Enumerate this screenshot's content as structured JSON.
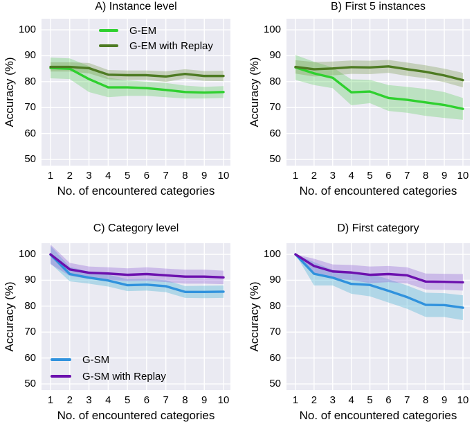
{
  "figure": {
    "background": "#ffffff",
    "axes_background": "#eaeaf2",
    "grid_color": "#ffffff"
  },
  "chart_data": [
    {
      "id": "A",
      "type": "line",
      "title": "A) Instance level",
      "xlabel": "No. of encountered categories",
      "ylabel": "Accuracy (%)",
      "x": [
        1,
        2,
        3,
        4,
        5,
        6,
        7,
        8,
        9,
        10
      ],
      "yticks": [
        50,
        60,
        70,
        80,
        90,
        100
      ],
      "ylim": [
        47.6,
        104.3
      ],
      "grid": true,
      "legend": {
        "visible": true,
        "location": "upper center"
      },
      "series": [
        {
          "name": "G-EM",
          "color": "#2fd02f",
          "band_color": "rgba(70,200,70,0.28)",
          "values": [
            85.3,
            85.0,
            81.0,
            77.8,
            77.8,
            77.5,
            76.8,
            76.0,
            75.8,
            76.0
          ],
          "upper": [
            89.3,
            89.0,
            86.0,
            81.5,
            80.5,
            80.0,
            79.5,
            78.5,
            78.0,
            78.3
          ],
          "lower": [
            81.3,
            81.0,
            76.0,
            74.0,
            74.5,
            74.5,
            74.0,
            73.5,
            73.5,
            73.7
          ]
        },
        {
          "name": "G-EM with Replay",
          "color": "#4e7b23",
          "band_color": "rgba(110,145,60,0.30)",
          "values": [
            85.7,
            85.7,
            85.2,
            82.7,
            82.5,
            82.5,
            82.0,
            83.0,
            82.2,
            82.2
          ],
          "upper": [
            87.5,
            87.5,
            87.2,
            84.5,
            84.3,
            84.3,
            84.0,
            84.8,
            84.1,
            84.2
          ],
          "lower": [
            83.9,
            83.9,
            83.2,
            80.9,
            80.7,
            80.7,
            79.9,
            81.2,
            80.3,
            80.2
          ]
        }
      ]
    },
    {
      "id": "B",
      "type": "line",
      "title": "B) First 5 instances",
      "xlabel": "No. of encountered categories",
      "ylabel": "Accuracy (%)",
      "x": [
        1,
        2,
        3,
        4,
        5,
        6,
        7,
        8,
        9,
        10
      ],
      "yticks": [
        50,
        60,
        70,
        80,
        90,
        100
      ],
      "ylim": [
        47.6,
        104.3
      ],
      "grid": true,
      "legend": {
        "visible": false,
        "location": ""
      },
      "series": [
        {
          "name": "G-EM",
          "color": "#2fd02f",
          "band_color": "rgba(70,200,70,0.28)",
          "values": [
            85.5,
            83.2,
            81.5,
            75.9,
            76.2,
            73.7,
            73.0,
            72.0,
            71.0,
            69.5
          ],
          "upper": [
            90.3,
            87.7,
            85.5,
            80.9,
            80.7,
            78.7,
            78.0,
            77.2,
            76.0,
            73.7
          ],
          "lower": [
            80.7,
            78.7,
            77.5,
            70.9,
            71.7,
            68.7,
            68.0,
            66.8,
            66.0,
            65.3
          ]
        },
        {
          "name": "G-EM with Replay",
          "color": "#4e7b23",
          "band_color": "rgba(110,145,60,0.30)",
          "values": [
            85.7,
            84.8,
            85.1,
            85.6,
            85.5,
            85.9,
            84.8,
            83.8,
            82.4,
            80.6
          ],
          "upper": [
            88.3,
            87.6,
            87.8,
            88.2,
            88.1,
            88.4,
            87.4,
            86.3,
            85.0,
            83.4
          ],
          "lower": [
            83.1,
            82.0,
            82.4,
            83.0,
            82.9,
            83.4,
            82.2,
            81.3,
            79.8,
            77.8
          ]
        }
      ]
    },
    {
      "id": "C",
      "type": "line",
      "title": "C) Category level",
      "xlabel": "No. of encountered categories",
      "ylabel": "Accuracy (%)",
      "x": [
        1,
        2,
        3,
        4,
        5,
        6,
        7,
        8,
        9,
        10
      ],
      "yticks": [
        50,
        60,
        70,
        80,
        90,
        100
      ],
      "ylim": [
        47.6,
        104.3
      ],
      "grid": true,
      "legend": {
        "visible": true,
        "location": "lower left"
      },
      "series": [
        {
          "name": "G-SM",
          "color": "#3092dd",
          "band_color": "rgba(90,185,215,0.40)",
          "values": [
            99.9,
            92.4,
            91.0,
            89.9,
            88.1,
            88.3,
            87.7,
            85.5,
            85.5,
            85.6
          ],
          "upper": [
            103.3,
            95.2,
            93.3,
            92.2,
            90.4,
            90.6,
            90.0,
            87.8,
            87.9,
            88.0
          ],
          "lower": [
            96.5,
            89.6,
            88.7,
            87.6,
            85.8,
            86.0,
            85.4,
            83.2,
            83.1,
            83.2
          ]
        },
        {
          "name": "G-SM with Replay",
          "color": "#6c10ae",
          "band_color": "rgba(145,100,215,0.35)",
          "values": [
            100.0,
            94.2,
            92.9,
            92.6,
            92.1,
            92.4,
            91.9,
            91.4,
            91.4,
            91.1
          ],
          "upper": [
            103.8,
            96.7,
            95.3,
            95.0,
            94.6,
            95.0,
            94.5,
            94.1,
            94.1,
            93.7
          ],
          "lower": [
            96.2,
            91.7,
            90.5,
            90.2,
            89.6,
            89.8,
            89.3,
            88.7,
            88.7,
            88.5
          ]
        }
      ]
    },
    {
      "id": "D",
      "type": "line",
      "title": "D) First category",
      "xlabel": "No. of encountered categories",
      "ylabel": "Accuracy (%)",
      "x": [
        1,
        2,
        3,
        4,
        5,
        6,
        7,
        8,
        9,
        10
      ],
      "yticks": [
        50,
        60,
        70,
        80,
        90,
        100
      ],
      "ylim": [
        47.6,
        104.3
      ],
      "grid": true,
      "legend": {
        "visible": false,
        "location": ""
      },
      "series": [
        {
          "name": "G-SM",
          "color": "#3092dd",
          "band_color": "rgba(90,185,215,0.40)",
          "values": [
            100.0,
            92.5,
            91.0,
            88.6,
            88.2,
            85.9,
            83.5,
            80.5,
            80.4,
            79.4
          ],
          "upper": [
            100.0,
            97.0,
            94.0,
            92.4,
            92.6,
            90.4,
            88.0,
            85.2,
            85.0,
            84.2
          ],
          "lower": [
            100.0,
            88.0,
            88.0,
            84.8,
            83.8,
            81.4,
            79.0,
            75.8,
            75.8,
            74.6
          ]
        },
        {
          "name": "G-SM with Replay",
          "color": "#6c10ae",
          "band_color": "rgba(145,100,215,0.35)",
          "values": [
            100.0,
            95.5,
            93.4,
            93.0,
            92.1,
            92.4,
            91.9,
            89.5,
            89.4,
            89.2
          ],
          "upper": [
            100.0,
            98.3,
            96.1,
            95.9,
            95.3,
            95.5,
            95.0,
            92.6,
            92.5,
            92.4
          ],
          "lower": [
            100.0,
            92.7,
            90.7,
            90.1,
            88.9,
            89.3,
            88.8,
            86.4,
            86.3,
            86.0
          ]
        }
      ]
    }
  ]
}
